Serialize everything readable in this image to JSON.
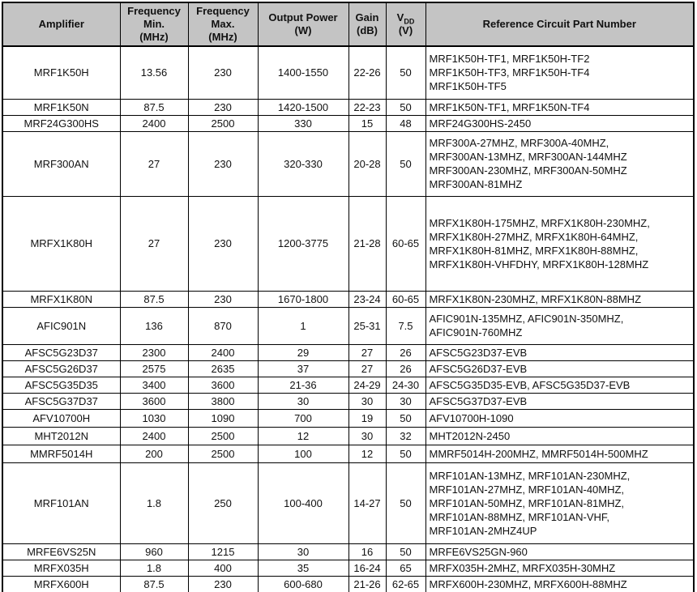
{
  "table": {
    "header": {
      "amplifier": "Amplifier",
      "freq_min": [
        "Frequency",
        "Min.",
        "(MHz)"
      ],
      "freq_max": [
        "Frequency",
        "Max.",
        "(MHz)"
      ],
      "output_power": [
        "Output Power",
        "(W)"
      ],
      "gain": [
        "Gain",
        "(dB)"
      ],
      "vdd": {
        "symbol": "V",
        "subscript": "DD",
        "unit": "(V)"
      },
      "reference": "Reference Circuit Part Number"
    },
    "rows": [
      {
        "amplifier": "MRF1K50H",
        "freq_min": "13.56",
        "freq_max": "230",
        "output_power": "1400-1550",
        "gain": "22-26",
        "vdd": "50",
        "reference_parts": [
          "MRF1K50H-TF1, MRF1K50H-TF2",
          "MRF1K50H-TF3, MRF1K50H-TF4",
          "MRF1K50H-TF5"
        ]
      },
      {
        "amplifier": "MRF1K50N",
        "freq_min": "87.5",
        "freq_max": "230",
        "output_power": "1420-1500",
        "gain": "22-23",
        "vdd": "50",
        "reference_parts": [
          "MRF1K50N-TF1, MRF1K50N-TF4"
        ]
      },
      {
        "amplifier": "MRF24G300HS",
        "freq_min": "2400",
        "freq_max": "2500",
        "output_power": "330",
        "gain": "15",
        "vdd": "48",
        "reference_parts": [
          "MRF24G300HS-2450"
        ]
      },
      {
        "amplifier": "MRF300AN",
        "freq_min": "27",
        "freq_max": "230",
        "output_power": "320-330",
        "gain": "20-28",
        "vdd": "50",
        "reference_parts": [
          "MRF300A-27MHZ, MRF300A-40MHZ,",
          "MRF300AN-13MHZ, MRF300AN-144MHZ",
          "MRF300AN-230MHZ, MRF300AN-50MHZ",
          "MRF300AN-81MHZ"
        ]
      },
      {
        "amplifier": "MRFX1K80H",
        "freq_min": "27",
        "freq_max": "230",
        "output_power": "1200-3775",
        "gain": "21-28",
        "vdd": "60-65",
        "reference_parts": [
          "MRFX1K80H-175MHZ, MRFX1K80H-230MHZ,",
          "MRFX1K80H-27MHZ, MRFX1K80H-64MHZ,",
          "MRFX1K80H-81MHZ, MRFX1K80H-88MHZ,",
          "MRFX1K80H-VHFDHY, MRFX1K80H-128MHZ"
        ]
      },
      {
        "amplifier": "MRFX1K80N",
        "freq_min": "87.5",
        "freq_max": "230",
        "output_power": "1670-1800",
        "gain": "23-24",
        "vdd": "60-65",
        "reference_parts": [
          "MRFX1K80N-230MHZ, MRFX1K80N-88MHZ"
        ]
      },
      {
        "amplifier": "AFIC901N",
        "freq_min": "136",
        "freq_max": "870",
        "output_power": "1",
        "gain": "25-31",
        "vdd": "7.5",
        "reference_parts": [
          "AFIC901N-135MHZ, AFIC901N-350MHZ,",
          "AFIC901N-760MHZ"
        ]
      },
      {
        "amplifier": "AFSC5G23D37",
        "freq_min": "2300",
        "freq_max": "2400",
        "output_power": "29",
        "gain": "27",
        "vdd": "26",
        "reference_parts": [
          "AFSC5G23D37-EVB"
        ]
      },
      {
        "amplifier": "AFSC5G26D37",
        "freq_min": "2575",
        "freq_max": "2635",
        "output_power": "37",
        "gain": "27",
        "vdd": "26",
        "reference_parts": [
          "AFSC5G26D37-EVB"
        ]
      },
      {
        "amplifier": "AFSC5G35D35",
        "freq_min": "3400",
        "freq_max": "3600",
        "output_power": "21-36",
        "gain": "24-29",
        "vdd": "24-30",
        "reference_parts": [
          "AFSC5G35D35-EVB, AFSC5G35D37-EVB"
        ]
      },
      {
        "amplifier": "AFSC5G37D37",
        "freq_min": "3600",
        "freq_max": "3800",
        "output_power": "30",
        "gain": "30",
        "vdd": "30",
        "reference_parts": [
          "AFSC5G37D37-EVB"
        ]
      },
      {
        "amplifier": "AFV10700H",
        "freq_min": "1030",
        "freq_max": "1090",
        "output_power": "700",
        "gain": "19",
        "vdd": "50",
        "reference_parts": [
          "AFV10700H-1090"
        ]
      },
      {
        "amplifier": "MHT2012N",
        "freq_min": "2400",
        "freq_max": "2500",
        "output_power": "12",
        "gain": "30",
        "vdd": "32",
        "reference_parts": [
          "MHT2012N-2450"
        ]
      },
      {
        "amplifier": "MMRF5014H",
        "freq_min": "200",
        "freq_max": "2500",
        "output_power": "100",
        "gain": "12",
        "vdd": "50",
        "reference_parts": [
          "MMRF5014H-200MHZ, MMRF5014H-500MHZ"
        ]
      },
      {
        "amplifier": "MRF101AN",
        "freq_min": "1.8",
        "freq_max": "250",
        "output_power": "100-400",
        "gain": "14-27",
        "vdd": "50",
        "reference_parts": [
          "MRF101AN-13MHZ, MRF101AN-230MHZ,",
          "MRF101AN-27MHZ, MRF101AN-40MHZ,",
          "MRF101AN-50MHZ, MRF101AN-81MHZ,",
          "MRF101AN-88MHZ, MRF101AN-VHF,",
          "MRF101AN-2MHZ4UP"
        ]
      },
      {
        "amplifier": "MRFE6VS25N",
        "freq_min": "960",
        "freq_max": "1215",
        "output_power": "30",
        "gain": "16",
        "vdd": "50",
        "reference_parts": [
          "MRFE6VS25GN-960"
        ]
      },
      {
        "amplifier": "MRFX035H",
        "freq_min": "1.8",
        "freq_max": "400",
        "output_power": "35",
        "gain": "16-24",
        "vdd": "65",
        "reference_parts": [
          "MRFX035H-2MHZ, MRFX035H-30MHZ"
        ]
      },
      {
        "amplifier": "MRFX600H",
        "freq_min": "87.5",
        "freq_max": "230",
        "output_power": "600-680",
        "gain": "21-26",
        "vdd": "62-65",
        "reference_parts": [
          "MRFX600H-230MHZ, MRFX600H-88MHZ"
        ]
      }
    ],
    "colors": {
      "header_bg": "#c4c4c4",
      "border": "#000000",
      "row_bg": "#ffffff",
      "text": "#111111"
    }
  }
}
